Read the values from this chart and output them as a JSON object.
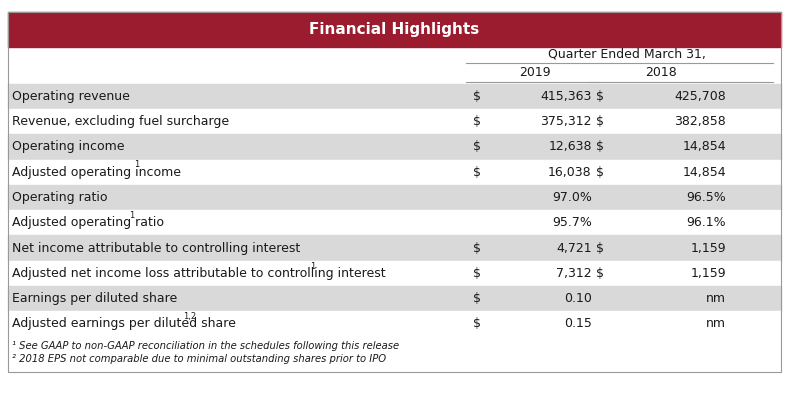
{
  "title": "Financial Highlights",
  "header_bg": "#9B1C2E",
  "header_text_color": "#FFFFFF",
  "subheader": "Quarter Ended March 31,",
  "col_years": [
    "2019",
    "2018"
  ],
  "rows": [
    {
      "label": "Operating revenue",
      "dollar_2019": true,
      "val_2019": "415,363",
      "dollar_2018": true,
      "val_2018": "425,708",
      "shaded": true,
      "sup_label": ""
    },
    {
      "label": "Revenue, excluding fuel surcharge",
      "dollar_2019": true,
      "val_2019": "375,312",
      "dollar_2018": true,
      "val_2018": "382,858",
      "shaded": false,
      "sup_label": ""
    },
    {
      "label": "Operating income",
      "dollar_2019": true,
      "val_2019": "12,638",
      "dollar_2018": true,
      "val_2018": "14,854",
      "shaded": true,
      "sup_label": ""
    },
    {
      "label": "Adjusted operating income",
      "dollar_2019": true,
      "val_2019": "16,038",
      "dollar_2018": true,
      "val_2018": "14,854",
      "shaded": false,
      "sup_label": "1"
    },
    {
      "label": "Operating ratio",
      "dollar_2019": false,
      "val_2019": "97.0%",
      "dollar_2018": false,
      "val_2018": "96.5%",
      "shaded": true,
      "sup_label": ""
    },
    {
      "label": "Adjusted operating ratio",
      "dollar_2019": false,
      "val_2019": "95.7%",
      "dollar_2018": false,
      "val_2018": "96.1%",
      "shaded": false,
      "sup_label": "1"
    },
    {
      "label": "Net income attributable to controlling interest",
      "dollar_2019": true,
      "val_2019": "4,721",
      "dollar_2018": true,
      "val_2018": "1,159",
      "shaded": true,
      "sup_label": ""
    },
    {
      "label": "Adjusted net income loss attributable to controlling interest",
      "dollar_2019": true,
      "val_2019": "7,312",
      "dollar_2018": true,
      "val_2018": "1,159",
      "shaded": false,
      "sup_label": "1"
    },
    {
      "label": "Earnings per diluted share",
      "dollar_2019": true,
      "val_2019": "0.10",
      "dollar_2018": false,
      "val_2018": "nm",
      "shaded": true,
      "sup_label": ""
    },
    {
      "label": "Adjusted earnings per diluted share",
      "dollar_2019": true,
      "val_2019": "0.15",
      "dollar_2018": false,
      "val_2018": "nm",
      "shaded": false,
      "sup_label": "1,2"
    }
  ],
  "footnotes": [
    "¹ See GAAP to non-GAAP reconciliation in the schedules following this release",
    "² 2018 EPS not comparable due to minimal outstanding shares prior to IPO"
  ],
  "shaded_color": "#D9D9D9",
  "white_color": "#FFFFFF",
  "border_color": "#999999",
  "text_color": "#1A1A1A",
  "font_size": 9,
  "title_font_size": 11
}
